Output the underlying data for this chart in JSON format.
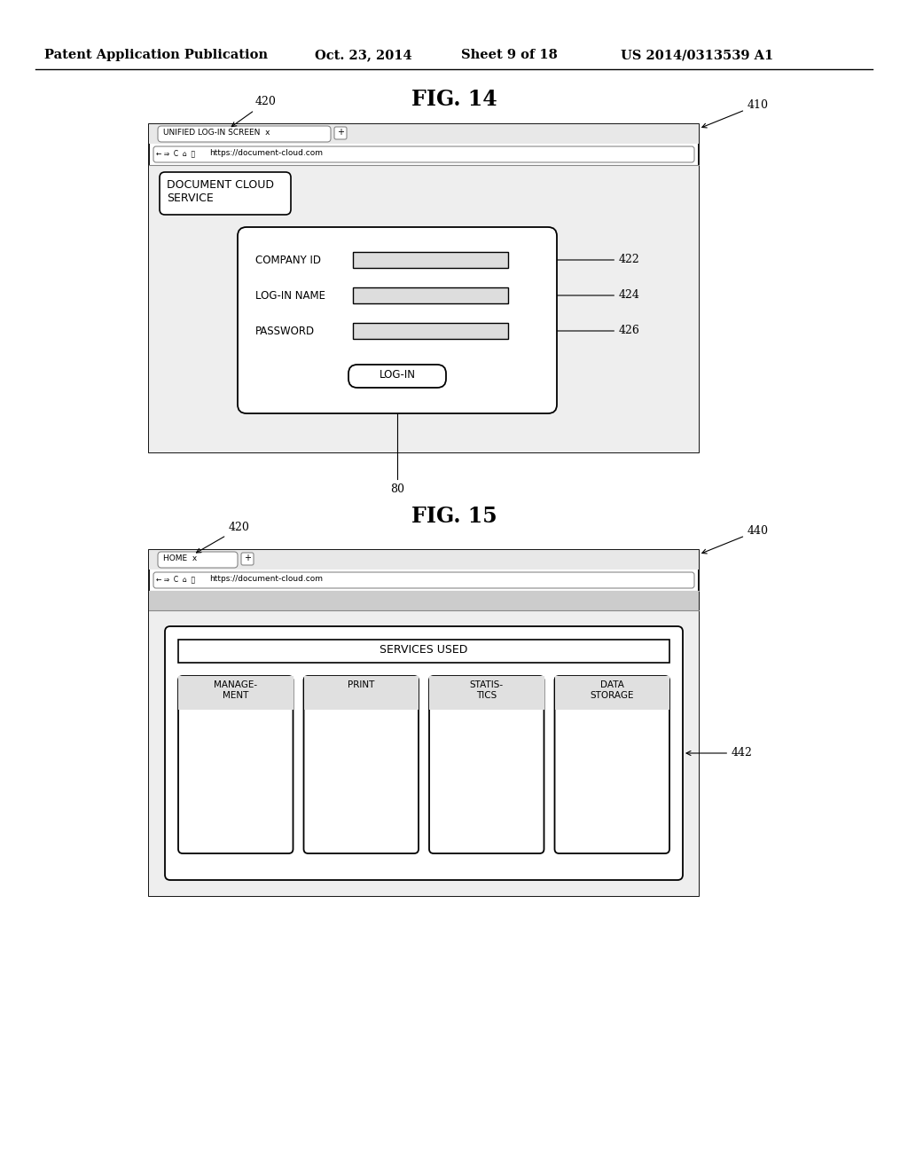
{
  "bg_color": "#ffffff",
  "header_text": "Patent Application Publication",
  "header_date": "Oct. 23, 2014",
  "header_sheet": "Sheet 9 of 18",
  "header_patent": "US 2014/0313539 A1",
  "fig14_title": "FIG. 14",
  "fig15_title": "FIG. 15",
  "fig14": {
    "tab_text": "UNIFIED LOG-IN SCREEN  x",
    "url": "https://document-cloud.com",
    "logo_text": "DOCUMENT CLOUD\nSERVICE",
    "field1_label": "COMPANY ID",
    "field2_label": "LOG-IN NAME",
    "field3_label": "PASSWORD",
    "button_text": "LOG-IN",
    "bottom_label": "80",
    "label_410": "410",
    "label_420": "420",
    "label_422": "422",
    "label_424": "424",
    "label_426": "426"
  },
  "fig15": {
    "tab_text": "HOME  x",
    "url": "https://document-cloud.com",
    "services_title": "SERVICES USED",
    "service_items": [
      "MANAGE-\nMENT",
      "PRINT",
      "STATIS-\nTICS",
      "DATA\nSTORAGE"
    ],
    "label_440": "440",
    "label_420": "420",
    "label_442": "442"
  }
}
